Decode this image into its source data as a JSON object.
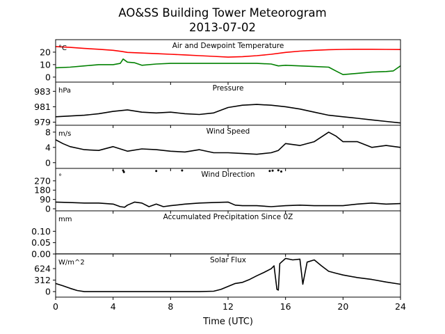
{
  "figure": {
    "title_line1": "AO&SS Building Tower Meteorogram",
    "title_line2": "2013-07-02",
    "xlabel": "Time (UTC)"
  },
  "chart_data": {
    "type": "line",
    "x_axis": {
      "range": [
        0,
        24
      ],
      "ticks": [
        0,
        4,
        8,
        12,
        16,
        20,
        24
      ],
      "tick_labels": [
        "0",
        "4",
        "8",
        "12",
        "16",
        "20",
        "24"
      ],
      "label": "Time (UTC)"
    },
    "panels": [
      {
        "id": "temperature",
        "title": "Air and Dewpoint Temperature",
        "unit": "°C",
        "ylim": [
          -4,
          30
        ],
        "yticks": [
          0,
          10,
          20
        ],
        "ytick_labels": [
          "0",
          "10",
          "20"
        ],
        "series": [
          {
            "color": "#ff0000",
            "x": [
              0,
              1,
              2,
              3,
              4,
              4.6,
              5,
              6,
              7,
              8,
              9,
              10,
              11,
              12,
              13,
              14,
              15,
              16,
              17,
              18,
              19,
              20,
              21,
              22,
              23,
              24
            ],
            "y": [
              24.5,
              23.8,
              23,
              22.3,
              21.5,
              20.6,
              19.8,
              19.3,
              18.8,
              18.3,
              17.8,
              17.2,
              16.6,
              16,
              16.4,
              17.2,
              18.3,
              19.8,
              20.8,
              21.5,
              22,
              22.2,
              22.3,
              22.3,
              22.2,
              22.1
            ]
          },
          {
            "color": "#008000",
            "x": [
              0,
              1,
              2,
              3,
              4,
              4.5,
              4.7,
              5,
              5.5,
              6,
              7,
              8,
              9,
              10,
              11,
              12,
              13,
              14,
              15,
              15.5,
              16,
              17,
              18,
              19,
              19.5,
              20,
              20.5,
              21,
              22,
              23,
              23.5,
              24
            ],
            "y": [
              7.5,
              8,
              9,
              10,
              10,
              11,
              14.5,
              12,
              11.5,
              9.5,
              10.5,
              11,
              11,
              11,
              11,
              11,
              11,
              11,
              10.5,
              9,
              9.5,
              9,
              8.5,
              8,
              5,
              2,
              2.5,
              3,
              4,
              4.5,
              5,
              9
            ]
          }
        ]
      },
      {
        "id": "pressure",
        "title": "Pressure",
        "unit": "hPa",
        "ylim": [
          978.6,
          984.2
        ],
        "yticks": [
          979,
          981,
          983
        ],
        "ytick_labels": [
          "979",
          "981",
          "983"
        ],
        "series": [
          {
            "color": "#000000",
            "x": [
              0,
              1,
              2,
              3,
              4,
              5,
              6,
              7,
              8,
              9,
              10,
              11,
              12,
              13,
              14,
              15,
              16,
              17,
              18,
              19,
              20,
              21,
              22,
              23,
              24
            ],
            "y": [
              979.7,
              979.8,
              979.9,
              980.1,
              980.4,
              980.6,
              980.3,
              980.2,
              980.3,
              980.1,
              980.0,
              980.2,
              980.9,
              981.2,
              981.3,
              981.2,
              981.0,
              980.7,
              980.3,
              979.9,
              979.7,
              979.5,
              979.3,
              979.1,
              978.9
            ]
          }
        ]
      },
      {
        "id": "wind_speed",
        "title": "Wind Speed",
        "unit": "m/s",
        "ylim": [
          -1.5,
          9.8
        ],
        "yticks": [
          0,
          4,
          8
        ],
        "ytick_labels": [
          "0",
          "4",
          "8"
        ],
        "series": [
          {
            "color": "#000000",
            "x": [
              0,
              0.5,
              1,
              2,
              3,
              4,
              5,
              6,
              7,
              8,
              9,
              10,
              11,
              12,
              13,
              14,
              15,
              15.5,
              16,
              17,
              18,
              19,
              19.5,
              20,
              21,
              22,
              23,
              24
            ],
            "y": [
              6,
              5,
              4.2,
              3.4,
              3.2,
              4.2,
              3,
              3.6,
              3.4,
              3,
              2.8,
              3.4,
              2.6,
              2.6,
              2.4,
              2.2,
              2.6,
              3.2,
              5,
              4.5,
              5.5,
              8,
              7,
              5.5,
              5.5,
              4,
              4.5,
              4
            ]
          }
        ]
      },
      {
        "id": "wind_direction",
        "title": "Wind Direction",
        "unit": "°",
        "ylim": [
          -20,
          390
        ],
        "yticks": [
          0,
          90,
          180,
          270
        ],
        "ytick_labels": [
          "0",
          "90",
          "180",
          "270"
        ],
        "series": [
          {
            "color": "#000000",
            "x": [
              0,
              1,
              2,
              3,
              4,
              4.5,
              4.8,
              5,
              5.5,
              6,
              6.5,
              7,
              7.5,
              8,
              9,
              10,
              11,
              12,
              12.5,
              13,
              14,
              15,
              16,
              17,
              18,
              19,
              20,
              21,
              22,
              23,
              24
            ],
            "y": [
              65,
              60,
              55,
              55,
              45,
              20,
              15,
              35,
              65,
              55,
              20,
              45,
              20,
              30,
              45,
              55,
              60,
              65,
              35,
              30,
              30,
              20,
              30,
              35,
              30,
              30,
              30,
              45,
              55,
              45,
              50
            ]
          }
        ],
        "outliers": {
          "x": [
            4.7,
            4.75,
            7.0,
            8.8,
            14.9,
            15.1,
            15.5,
            15.7
          ],
          "y": [
            370,
            355,
            365,
            370,
            365,
            368,
            372,
            360
          ]
        }
      },
      {
        "id": "precipitation",
        "title": "Accumulated Precipitation Since 0Z",
        "unit": "mm",
        "ylim": [
          0,
          0.19
        ],
        "yticks": [
          0,
          0.05,
          0.1
        ],
        "ytick_labels": [
          "0.00",
          "0.05",
          "0.10"
        ],
        "series": [
          {
            "color": "#000000",
            "x": [
              0,
              24
            ],
            "y": [
              0,
              0
            ]
          }
        ]
      },
      {
        "id": "solar_flux",
        "title": "Solar Flux",
        "unit": "W/m^2",
        "ylim": [
          -150,
          1020
        ],
        "yticks": [
          0,
          312,
          624
        ],
        "ytick_labels": [
          "0",
          "312",
          "624"
        ],
        "series": [
          {
            "color": "#000000",
            "x": [
              0,
              0.5,
              1,
              1.5,
              2,
              4,
              8,
              10,
              11,
              11.5,
              12,
              12.5,
              13,
              13.5,
              14,
              14.5,
              15,
              15.2,
              15.4,
              15.5,
              15.6,
              16,
              16.5,
              17,
              17.2,
              17.5,
              18,
              18.5,
              19,
              19.5,
              20,
              21,
              22,
              23,
              24
            ],
            "y": [
              220,
              160,
              90,
              30,
              0,
              0,
              0,
              0,
              10,
              60,
              140,
              220,
              250,
              330,
              430,
              520,
              620,
              700,
              60,
              40,
              760,
              900,
              860,
              880,
              200,
              800,
              860,
              700,
              550,
              500,
              450,
              380,
              330,
              260,
              200
            ]
          }
        ]
      }
    ]
  }
}
